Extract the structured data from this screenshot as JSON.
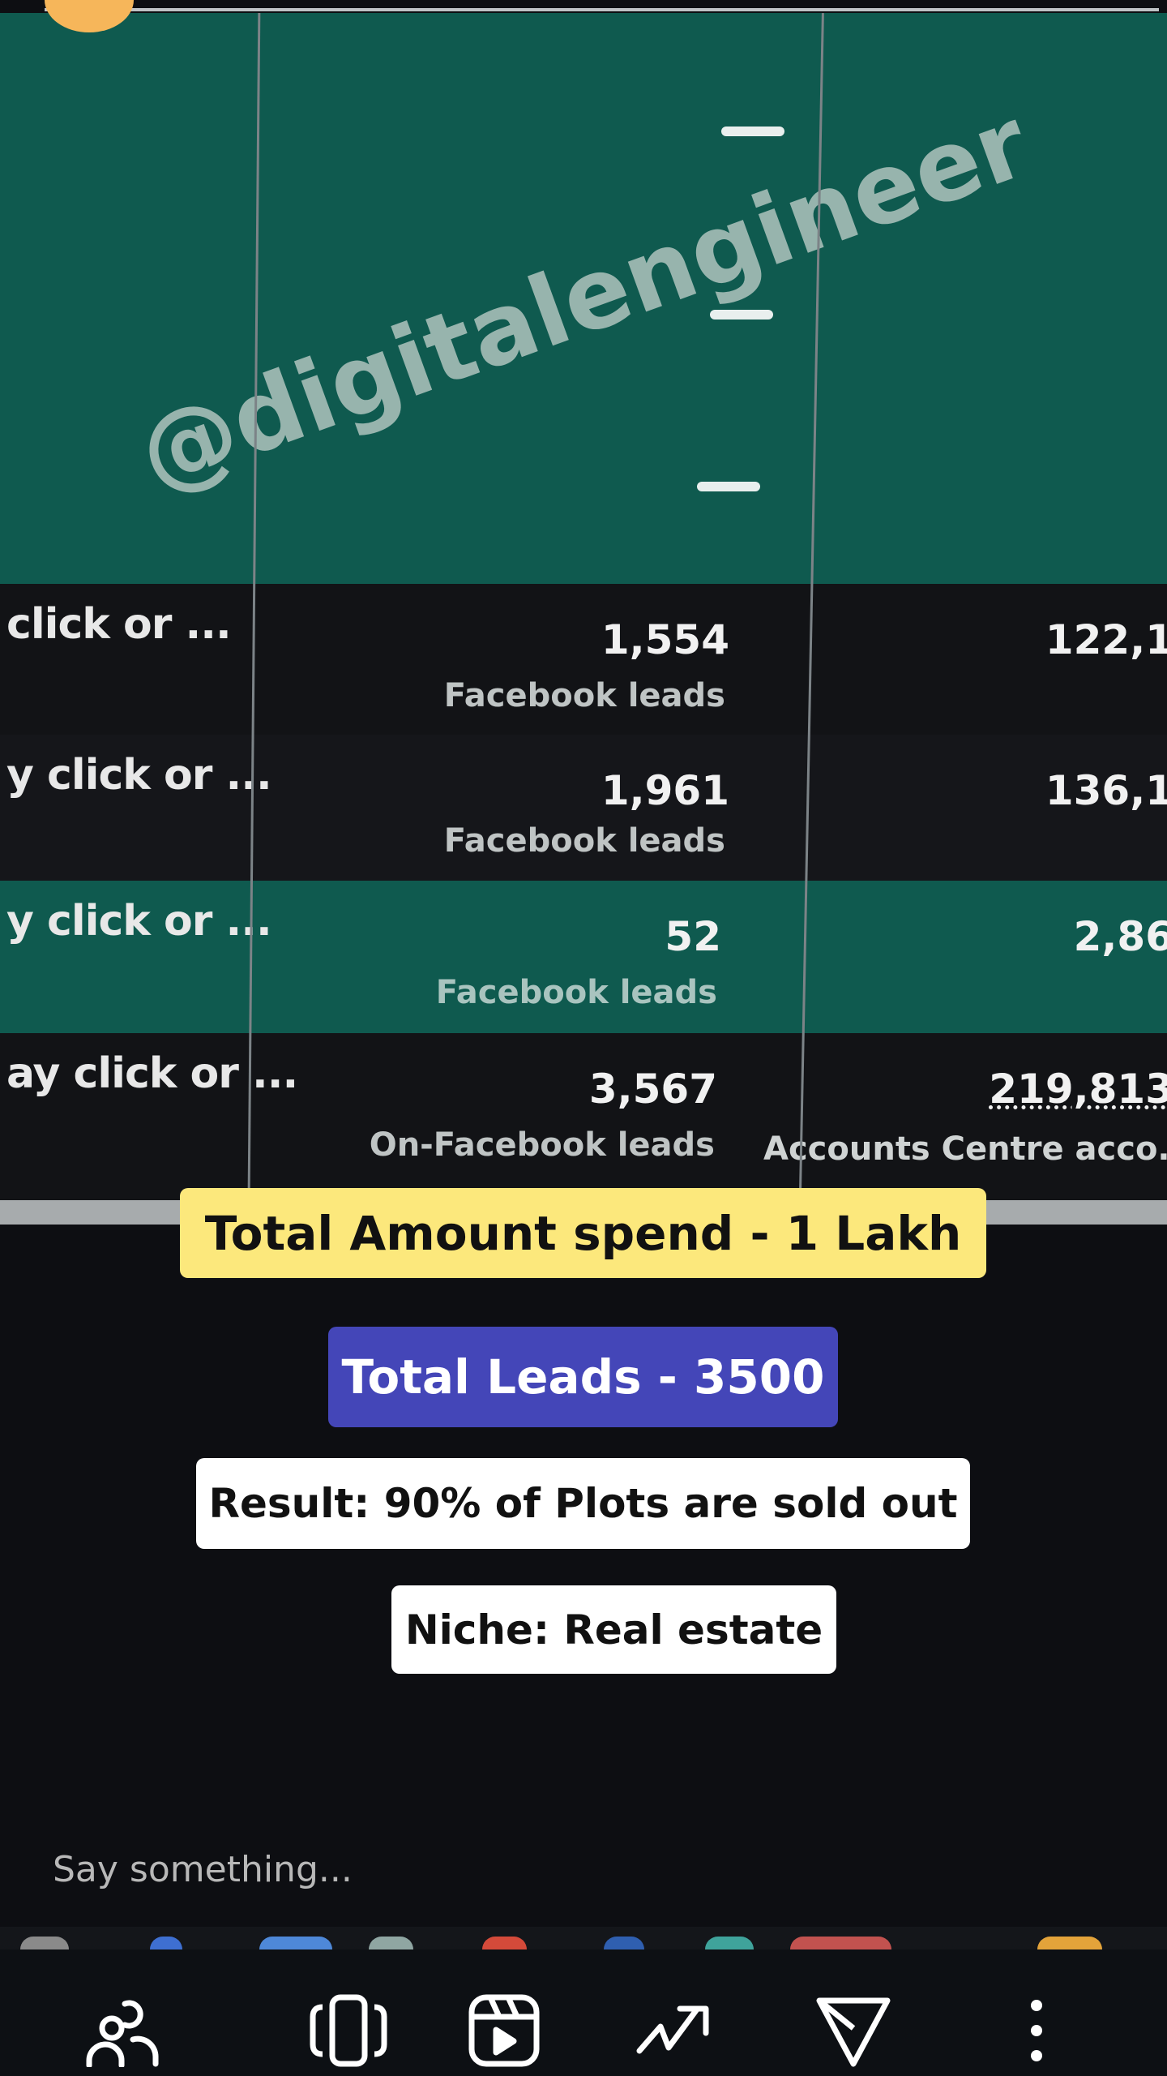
{
  "table": {
    "rows": [
      {
        "left": "click or ...",
        "value": "1,554",
        "type": "Facebook leads",
        "right": "122,1",
        "right_sub": ""
      },
      {
        "left": "y click or ...",
        "value": "1,961",
        "type": "Facebook leads",
        "right": "136,1",
        "right_sub": ""
      },
      {
        "left": "y click or ...",
        "value": "52",
        "type": "Facebook leads",
        "right": "2,86",
        "right_sub": ""
      },
      {
        "left": "ay click or ...",
        "value": "3,567",
        "type": "On-Facebook leads",
        "right": "219,813",
        "right_sub": "Accounts Centre acco..."
      }
    ]
  },
  "overlays": {
    "spend": "Total Amount spend - 1 Lakh",
    "leads": "Total Leads - 3500",
    "result": "Result: 90% of Plots are sold out",
    "niche": "Niche: Real estate"
  },
  "watermark": "@digitalengineer",
  "comment": {
    "placeholder": "Say something..."
  },
  "nav": {
    "icons": [
      "people-icon",
      "carousel-icon",
      "reels-icon",
      "trending-icon",
      "send-icon",
      "more-icon"
    ]
  },
  "colors": {
    "green": "#0f5a4f",
    "yellow": "#fce87c",
    "blue": "#4446b8",
    "white": "#ffffff"
  }
}
